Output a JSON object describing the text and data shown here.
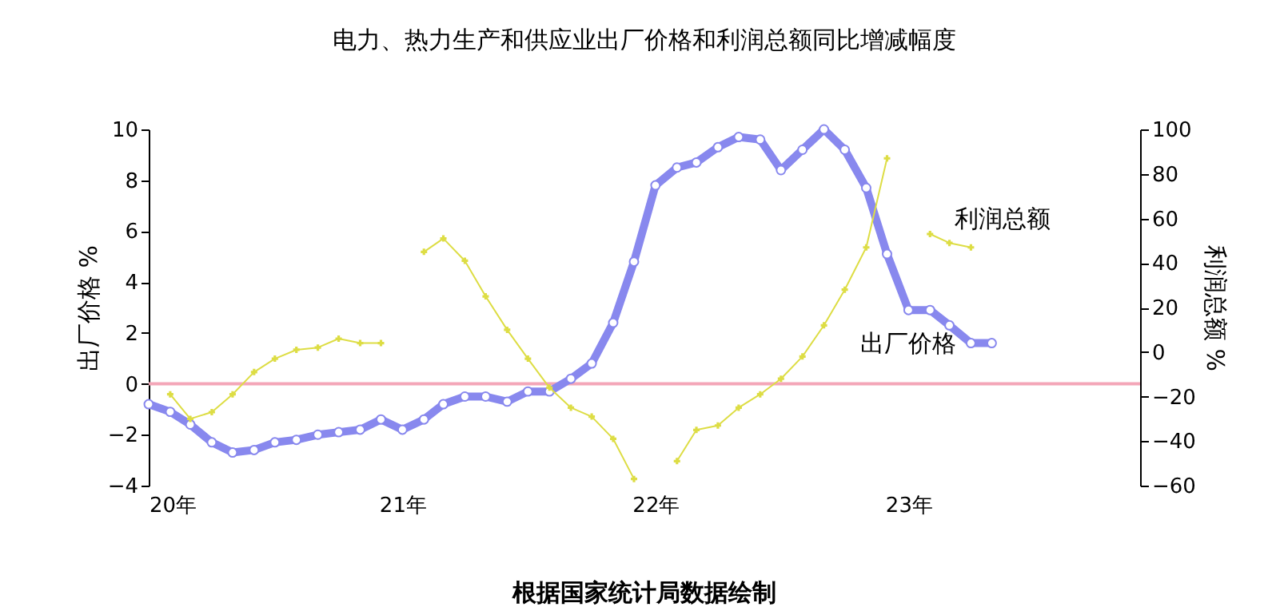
{
  "chart_data": {
    "type": "line",
    "title": "电力、热力生产和供应业出厂价格和利润总额同比增减幅度",
    "ylabel": "出厂价格 %",
    "y2label": "利润总额 %",
    "x": [
      "2020-01",
      "2020-02",
      "2020-03",
      "2020-04",
      "2020-05",
      "2020-06",
      "2020-07",
      "2020-08",
      "2020-09",
      "2020-10",
      "2020-11",
      "2020-12",
      "2021-01",
      "2021-02",
      "2021-03",
      "2021-04",
      "2021-05",
      "2021-06",
      "2021-07",
      "2021-08",
      "2021-09",
      "2021-10",
      "2021-11",
      "2021-12",
      "2022-01",
      "2022-02",
      "2022-03",
      "2022-04",
      "2022-05",
      "2022-06",
      "2022-07",
      "2022-08",
      "2022-09",
      "2022-10",
      "2022-11",
      "2022-12",
      "2023-01",
      "2023-02",
      "2023-03",
      "2023-04",
      "2023-05"
    ],
    "series": [
      {
        "name": "出厂价格",
        "color": "#8888ee",
        "marker": "circle",
        "values": [
          -0.8,
          -1.1,
          -1.6,
          -2.3,
          -2.7,
          -2.6,
          -2.3,
          -2.2,
          -2.0,
          -1.9,
          -1.8,
          -1.4,
          -1.8,
          -1.4,
          -0.8,
          -0.5,
          -0.5,
          -0.7,
          -0.3,
          -0.3,
          0.2,
          0.8,
          2.4,
          4.8,
          7.8,
          8.5,
          8.7,
          9.3,
          9.7,
          9.6,
          8.4,
          9.2,
          10.0,
          9.2,
          7.7,
          5.1,
          2.9,
          2.9,
          2.3,
          1.6,
          1.6
        ]
      },
      {
        "name": "利润总额",
        "color": "#dddd44",
        "marker": "cross",
        "axis": "y2",
        "values": [
          null,
          -19,
          -30,
          -27,
          -19,
          -9,
          -3,
          1,
          2,
          6,
          4,
          4,
          null,
          45,
          51,
          41,
          25,
          10,
          -3,
          -16,
          -25,
          -29,
          -39,
          -57,
          null,
          -49,
          -35,
          -33,
          -25,
          -19,
          -12,
          -2,
          12,
          28,
          47,
          87,
          null,
          53,
          49,
          47,
          null
        ]
      }
    ],
    "xlim": [
      "2020-01",
      "2023-12"
    ],
    "xticks": [
      {
        "value": "2020-01",
        "label": "20年"
      },
      {
        "value": "2021-01",
        "label": "21年"
      },
      {
        "value": "2022-01",
        "label": "22年"
      },
      {
        "value": "2023-01",
        "label": "23年"
      }
    ],
    "ylim": [
      -4,
      10
    ],
    "yticks": [
      -4,
      -2,
      0,
      2,
      4,
      6,
      8,
      10
    ],
    "y2lim": [
      -60,
      100
    ],
    "y2ticks": [
      -60,
      -40,
      -20,
      0,
      20,
      40,
      60,
      80,
      100
    ],
    "ref_lines": [
      {
        "axis": "y",
        "value": 0,
        "color": "#f4a6b8"
      }
    ],
    "line_style": "solid",
    "grid": false,
    "legend": false,
    "annotations": [
      "根据国家统计局数据绘制"
    ]
  }
}
